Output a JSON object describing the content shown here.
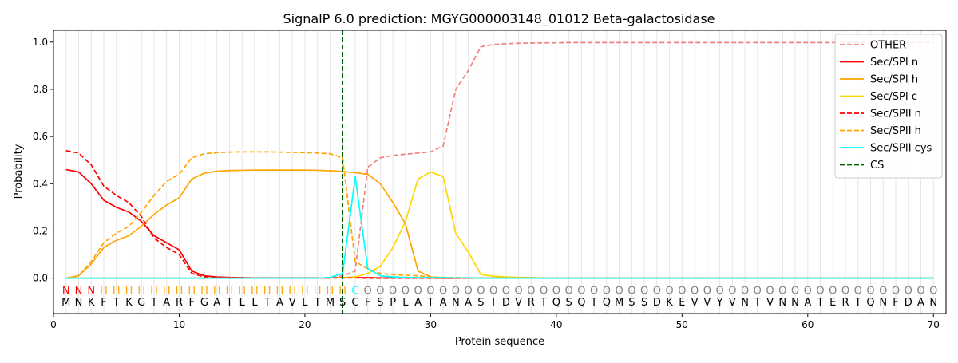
{
  "chart_data": {
    "type": "line",
    "title": "SignalP 6.0 prediction: MGYG000003148_01012 Beta-galactosidase",
    "xlabel": "Protein sequence",
    "ylabel": "Probability",
    "xlim": [
      0,
      71
    ],
    "ylim": [
      -0.15,
      1.05
    ],
    "xticks": [
      0,
      10,
      20,
      30,
      40,
      50,
      60,
      70
    ],
    "yticks": [
      0.0,
      0.2,
      0.4,
      0.6,
      0.8,
      1.0
    ],
    "x_tick_labels": [
      "0",
      "10",
      "20",
      "30",
      "40",
      "50",
      "60",
      "70"
    ],
    "y_tick_labels": [
      "0.0",
      "0.2",
      "0.4",
      "0.6",
      "0.8",
      "1.0"
    ],
    "grid": "vertical lines at each residue",
    "legend_position": "top-right",
    "sequence": [
      "M",
      "N",
      "K",
      "F",
      "T",
      "K",
      "G",
      "T",
      "A",
      "R",
      "F",
      "G",
      "A",
      "T",
      "L",
      "L",
      "T",
      "A",
      "V",
      "L",
      "T",
      "M",
      "S",
      "C",
      "F",
      "S",
      "P",
      "L",
      "A",
      "T",
      "A",
      "N",
      "A",
      "S",
      "I",
      "D",
      "V",
      "R",
      "T",
      "Q",
      "S",
      "Q",
      "T",
      "Q",
      "M",
      "S",
      "S",
      "D",
      "K",
      "E",
      "V",
      "V",
      "Y",
      "V",
      "N",
      "T",
      "V",
      "N",
      "N",
      "A",
      "T",
      "E",
      "R",
      "T",
      "Q",
      "N",
      "F",
      "D",
      "A",
      "N"
    ],
    "region_labels": [
      "N",
      "N",
      "N",
      "H",
      "H",
      "H",
      "H",
      "H",
      "H",
      "H",
      "H",
      "H",
      "H",
      "H",
      "H",
      "H",
      "H",
      "H",
      "H",
      "H",
      "H",
      "H",
      "H",
      "C",
      "O",
      "O",
      "O",
      "O",
      "O",
      "O",
      "O",
      "O",
      "O",
      "O",
      "O",
      "O",
      "O",
      "O",
      "O",
      "O",
      "O",
      "O",
      "O",
      "O",
      "O",
      "O",
      "O",
      "O",
      "O",
      "O",
      "O",
      "O",
      "O",
      "O",
      "O",
      "O",
      "O",
      "O",
      "O",
      "O",
      "O",
      "O",
      "O",
      "O",
      "O",
      "O",
      "O",
      "O",
      "O",
      "O"
    ],
    "region_label_colors": {
      "N": "#ff0000",
      "H": "#ffa500",
      "C": "#00ffff",
      "O": "#808080"
    },
    "cleavage_site": 23,
    "series": [
      {
        "name": "OTHER",
        "color": "#f08080",
        "dash": "dashed",
        "values": [
          0.0,
          0.0,
          0.0,
          0.0,
          0.0,
          0.0,
          0.0,
          0.0,
          0.0,
          0.0,
          0.0,
          0.0,
          0.0,
          0.0,
          0.0,
          0.0,
          0.0,
          0.0,
          0.0,
          0.0,
          0.0,
          0.0,
          0.01,
          0.03,
          0.47,
          0.51,
          0.52,
          0.525,
          0.53,
          0.535,
          0.56,
          0.8,
          0.88,
          0.98,
          0.99,
          0.993,
          0.995,
          0.996,
          0.997,
          0.997,
          0.998,
          0.998,
          0.998,
          0.998,
          0.998,
          0.998,
          0.998,
          0.998,
          0.998,
          0.998,
          0.998,
          0.998,
          0.998,
          0.998,
          0.998,
          0.998,
          0.998,
          0.998,
          0.998,
          0.998,
          0.998,
          0.998,
          0.998,
          0.998,
          0.998,
          0.998,
          0.998,
          0.998,
          0.998,
          0.998
        ]
      },
      {
        "name": "Sec/SPI n",
        "color": "#ff0000",
        "dash": "solid",
        "values": [
          0.46,
          0.45,
          0.4,
          0.33,
          0.3,
          0.28,
          0.24,
          0.18,
          0.15,
          0.12,
          0.03,
          0.01,
          0.005,
          0.003,
          0.002,
          0.001,
          0.001,
          0.001,
          0.001,
          0.001,
          0.001,
          0.001,
          0.002,
          0.002,
          0.002,
          0.001,
          0.001,
          0.001,
          0.001,
          0.001,
          0.0,
          0.0,
          0.0,
          0.0,
          0.0,
          0.0,
          0.0,
          0.0,
          0.0,
          0.0,
          0.0,
          0.0,
          0.0,
          0.0,
          0.0,
          0.0,
          0.0,
          0.0,
          0.0,
          0.0,
          0.0,
          0.0,
          0.0,
          0.0,
          0.0,
          0.0,
          0.0,
          0.0,
          0.0,
          0.0,
          0.0,
          0.0,
          0.0,
          0.0,
          0.0,
          0.0,
          0.0,
          0.0,
          0.0,
          0.0
        ]
      },
      {
        "name": "Sec/SPI h",
        "color": "#ffa500",
        "dash": "solid",
        "values": [
          0.0,
          0.01,
          0.06,
          0.13,
          0.16,
          0.18,
          0.22,
          0.27,
          0.31,
          0.34,
          0.42,
          0.445,
          0.453,
          0.456,
          0.457,
          0.458,
          0.458,
          0.458,
          0.458,
          0.458,
          0.457,
          0.455,
          0.452,
          0.447,
          0.44,
          0.4,
          0.32,
          0.23,
          0.03,
          0.005,
          0.002,
          0.001,
          0.0,
          0.0,
          0.0,
          0.0,
          0.0,
          0.0,
          0.0,
          0.0,
          0.0,
          0.0,
          0.0,
          0.0,
          0.0,
          0.0,
          0.0,
          0.0,
          0.0,
          0.0,
          0.0,
          0.0,
          0.0,
          0.0,
          0.0,
          0.0,
          0.0,
          0.0,
          0.0,
          0.0,
          0.0,
          0.0,
          0.0,
          0.0,
          0.0,
          0.0,
          0.0,
          0.0,
          0.0,
          0.0
        ]
      },
      {
        "name": "Sec/SPI c",
        "color": "#ffd700",
        "dash": "solid",
        "values": [
          0.0,
          0.0,
          0.0,
          0.0,
          0.0,
          0.0,
          0.0,
          0.0,
          0.0,
          0.0,
          0.0,
          0.0,
          0.0,
          0.0,
          0.0,
          0.0,
          0.0,
          0.0,
          0.0,
          0.0,
          0.0,
          0.001,
          0.002,
          0.005,
          0.02,
          0.05,
          0.13,
          0.24,
          0.42,
          0.45,
          0.43,
          0.19,
          0.11,
          0.015,
          0.008,
          0.005,
          0.003,
          0.002,
          0.001,
          0.001,
          0.0,
          0.0,
          0.0,
          0.0,
          0.0,
          0.0,
          0.0,
          0.0,
          0.0,
          0.0,
          0.0,
          0.0,
          0.0,
          0.0,
          0.0,
          0.0,
          0.0,
          0.0,
          0.0,
          0.0,
          0.0,
          0.0,
          0.0,
          0.0,
          0.0,
          0.0,
          0.0,
          0.0,
          0.0,
          0.0
        ]
      },
      {
        "name": "Sec/SPII n",
        "color": "#ff0000",
        "dash": "dashed",
        "values": [
          0.54,
          0.53,
          0.48,
          0.39,
          0.35,
          0.32,
          0.26,
          0.17,
          0.13,
          0.1,
          0.02,
          0.005,
          0.003,
          0.002,
          0.001,
          0.001,
          0.001,
          0.001,
          0.001,
          0.001,
          0.001,
          0.001,
          0.001,
          0.001,
          0.0,
          0.0,
          0.0,
          0.0,
          0.0,
          0.0,
          0.0,
          0.0,
          0.0,
          0.0,
          0.0,
          0.0,
          0.0,
          0.0,
          0.0,
          0.0,
          0.0,
          0.0,
          0.0,
          0.0,
          0.0,
          0.0,
          0.0,
          0.0,
          0.0,
          0.0,
          0.0,
          0.0,
          0.0,
          0.0,
          0.0,
          0.0,
          0.0,
          0.0,
          0.0,
          0.0,
          0.0,
          0.0,
          0.0,
          0.0,
          0.0,
          0.0,
          0.0,
          0.0,
          0.0,
          0.0
        ]
      },
      {
        "name": "Sec/SPII h",
        "color": "#ffa500",
        "dash": "dashed",
        "values": [
          0.0,
          0.01,
          0.07,
          0.15,
          0.19,
          0.22,
          0.28,
          0.35,
          0.41,
          0.44,
          0.51,
          0.527,
          0.532,
          0.534,
          0.535,
          0.535,
          0.535,
          0.534,
          0.533,
          0.532,
          0.53,
          0.527,
          0.51,
          0.07,
          0.04,
          0.02,
          0.015,
          0.012,
          0.01,
          0.005,
          0.003,
          0.002,
          0.001,
          0.0,
          0.0,
          0.0,
          0.0,
          0.0,
          0.0,
          0.0,
          0.0,
          0.0,
          0.0,
          0.0,
          0.0,
          0.0,
          0.0,
          0.0,
          0.0,
          0.0,
          0.0,
          0.0,
          0.0,
          0.0,
          0.0,
          0.0,
          0.0,
          0.0,
          0.0,
          0.0,
          0.0,
          0.0,
          0.0,
          0.0,
          0.0,
          0.0,
          0.0,
          0.0,
          0.0,
          0.0
        ]
      },
      {
        "name": "Sec/SPII cys",
        "color": "#00ffff",
        "dash": "solid",
        "values": [
          0.0,
          0.0,
          0.0,
          0.0,
          0.0,
          0.0,
          0.0,
          0.0,
          0.0,
          0.0,
          0.0,
          0.0,
          0.0,
          0.0,
          0.0,
          0.0,
          0.0,
          0.0,
          0.0,
          0.0,
          0.0,
          0.003,
          0.02,
          0.43,
          0.04,
          0.01,
          0.005,
          0.003,
          0.002,
          0.002,
          0.002,
          0.001,
          0.001,
          0.0,
          0.0,
          0.0,
          0.0,
          0.0,
          0.0,
          0.0,
          0.0,
          0.0,
          0.0,
          0.0,
          0.0,
          0.0,
          0.0,
          0.0,
          0.0,
          0.0,
          0.0,
          0.0,
          0.0,
          0.0,
          0.0,
          0.0,
          0.0,
          0.0,
          0.0,
          0.0,
          0.0,
          0.0,
          0.0,
          0.0,
          0.0,
          0.0,
          0.0,
          0.0,
          0.0,
          0.0
        ]
      },
      {
        "name": "CS",
        "color": "#006400",
        "dash": "dashed",
        "values": []
      }
    ]
  }
}
